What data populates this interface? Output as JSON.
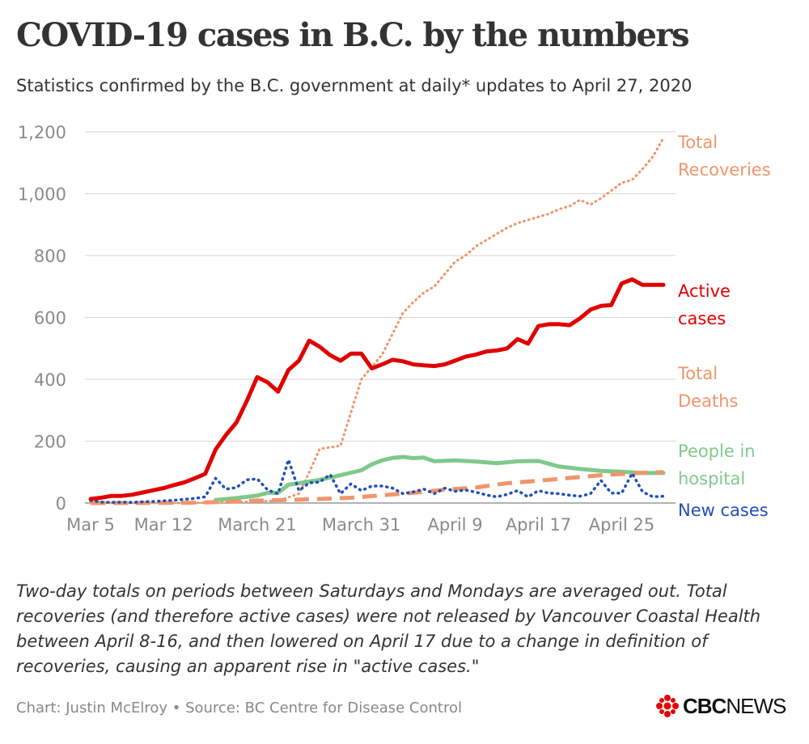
{
  "header": {
    "title": "COVID-19 cases in B.C. by the numbers",
    "subtitle": "Statistics confirmed by the B.C. government at daily* updates to April 27, 2020"
  },
  "footer": {
    "note": "Two-day totals on periods between Saturdays and Mondays are averaged out. Total recoveries (and therefore active cases) were not released by Vancouver Coastal Health between April 8-16, and then lowered on April 17 due to a change in definition of recoveries, causing an apparent rise in \"active cases.\"",
    "credit": "Chart: Justin McElroy • Source: BC Centre for Disease Control",
    "logo_bold": "CBC",
    "logo_light": "NEWS"
  },
  "chart_data": {
    "type": "line",
    "ylim": [
      0,
      1200
    ],
    "yticks": [
      0,
      200,
      400,
      600,
      800,
      1000,
      1200
    ],
    "ytick_labels": [
      "0",
      "200",
      "400",
      "600",
      "800",
      "1,000",
      "1,200"
    ],
    "x_range": [
      0,
      55
    ],
    "xticks": [
      0,
      7,
      16,
      26,
      35,
      43,
      51
    ],
    "xtick_labels": [
      "Mar 5",
      "Mar 12",
      "March 21",
      "March 31",
      "April 9",
      "April 17",
      "April 25"
    ],
    "grid": true,
    "legend": "direct labels at right",
    "series": [
      {
        "name": "Total Recoveries",
        "label_lines": [
          "Total",
          "Recoveries"
        ],
        "color": "#F0956B",
        "style": "dotted",
        "x": [
          0,
          2,
          4,
          6,
          8,
          10,
          12,
          14,
          16,
          18,
          20,
          21,
          22,
          23,
          24,
          26,
          27,
          28,
          30,
          31,
          32,
          33,
          34,
          35,
          36,
          37,
          38,
          39,
          40,
          41,
          42,
          43,
          44,
          45,
          46,
          47,
          48,
          49,
          50,
          51,
          52,
          53,
          54,
          55
        ],
        "y": [
          0,
          0,
          0,
          0,
          0,
          0,
          2,
          3,
          5,
          7,
          30,
          100,
          175,
          180,
          185,
          400,
          440,
          480,
          615,
          650,
          680,
          700,
          740,
          780,
          800,
          830,
          850,
          870,
          890,
          905,
          915,
          925,
          935,
          950,
          960,
          980,
          965,
          985,
          1010,
          1035,
          1045,
          1080,
          1120,
          1180
        ]
      },
      {
        "name": "Active cases",
        "label_lines": [
          "Active",
          "cases"
        ],
        "color": "#E00000",
        "style": "solid",
        "x": [
          0,
          1,
          2,
          3,
          4,
          5,
          6,
          7,
          8,
          9,
          10,
          11,
          12,
          13,
          14,
          15,
          16,
          17,
          18,
          19,
          20,
          21,
          22,
          23,
          24,
          25,
          26,
          27,
          28,
          29,
          30,
          31,
          32,
          33,
          34,
          35,
          36,
          37,
          38,
          39,
          40,
          41,
          42,
          43,
          44,
          45,
          46,
          47,
          48,
          49,
          50,
          51,
          52,
          53,
          54,
          55
        ],
        "y": [
          13,
          17,
          23,
          23,
          27,
          34,
          41,
          48,
          58,
          67,
          80,
          94,
          173,
          220,
          260,
          330,
          407,
          390,
          360,
          430,
          460,
          525,
          505,
          478,
          460,
          483,
          483,
          435,
          448,
          463,
          458,
          448,
          445,
          443,
          448,
          460,
          473,
          480,
          490,
          493,
          500,
          530,
          515,
          572,
          578,
          578,
          575,
          597,
          625,
          637,
          640,
          710,
          723,
          705,
          705,
          705
        ]
      },
      {
        "name": "Total Deaths",
        "label_lines": [
          "Total",
          "Deaths"
        ],
        "color": "#F0956B",
        "style": "dashed",
        "x": [
          0,
          5,
          10,
          13,
          16,
          19,
          22,
          25,
          28,
          31,
          34,
          37,
          40,
          43,
          46,
          49,
          52,
          55
        ],
        "y": [
          0,
          0,
          1,
          4,
          8,
          10,
          13,
          17,
          25,
          33,
          43,
          50,
          64,
          72,
          81,
          90,
          96,
          100
        ]
      },
      {
        "name": "People in hospital",
        "label_lines": [
          "People in",
          "hospital"
        ],
        "color": "#7FC98B",
        "style": "solid",
        "x": [
          12,
          14,
          16,
          17,
          18,
          19,
          20,
          22,
          24,
          26,
          27,
          28,
          29,
          30,
          31,
          32,
          33,
          35,
          37,
          39,
          41,
          43,
          45,
          47,
          49,
          51,
          53,
          55
        ],
        "y": [
          10,
          16,
          24,
          33,
          33,
          59,
          64,
          75,
          90,
          106,
          125,
          138,
          146,
          149,
          145,
          147,
          135,
          138,
          134,
          129,
          135,
          136,
          118,
          110,
          104,
          101,
          97,
          97
        ]
      },
      {
        "name": "New cases",
        "label_lines": [
          "New cases"
        ],
        "color": "#2050B5",
        "style": "dotted",
        "x": [
          0,
          1,
          2,
          3,
          4,
          5,
          6,
          7,
          8,
          9,
          10,
          11,
          12,
          13,
          14,
          15,
          16,
          17,
          18,
          19,
          20,
          21,
          22,
          23,
          24,
          25,
          26,
          27,
          28,
          29,
          30,
          31,
          32,
          33,
          34,
          35,
          36,
          37,
          38,
          39,
          40,
          41,
          42,
          43,
          44,
          45,
          46,
          47,
          48,
          49,
          50,
          51,
          52,
          53,
          54,
          55
        ],
        "y": [
          8,
          3,
          2,
          3,
          2,
          4,
          5,
          7,
          9,
          12,
          15,
          20,
          80,
          45,
          50,
          75,
          78,
          42,
          30,
          140,
          40,
          65,
          68,
          92,
          30,
          62,
          40,
          55,
          55,
          48,
          30,
          36,
          45,
          30,
          48,
          38,
          42,
          35,
          26,
          20,
          28,
          40,
          20,
          40,
          32,
          30,
          25,
          22,
          30,
          73,
          32,
          32,
          96,
          36,
          20,
          22
        ]
      }
    ]
  }
}
